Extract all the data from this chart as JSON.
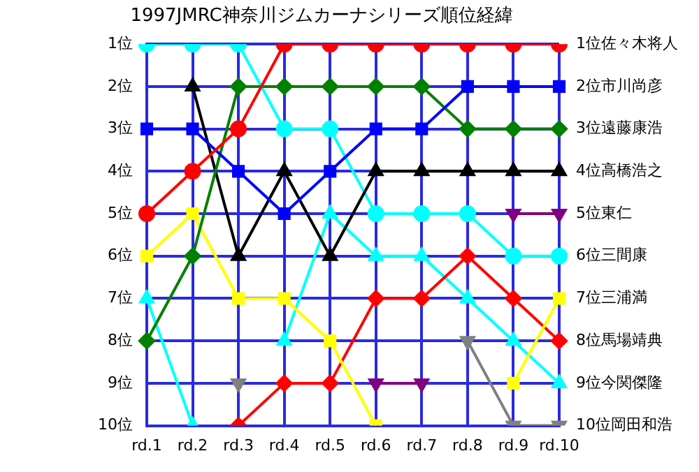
{
  "chart_data": {
    "type": "line",
    "title": "1997JMRC神奈川ジムカーナシリーズ順位経緯",
    "categories": [
      "rd.1",
      "rd.2",
      "rd.3",
      "rd.4",
      "rd.5",
      "rd.6",
      "rd.7",
      "rd.8",
      "rd.9",
      "rd.10"
    ],
    "ylim": [
      10,
      1
    ],
    "yticks": [
      {
        "value": 1,
        "label": "1位"
      },
      {
        "value": 2,
        "label": "2位"
      },
      {
        "value": 3,
        "label": "3位"
      },
      {
        "value": 4,
        "label": "4位"
      },
      {
        "value": 5,
        "label": "5位"
      },
      {
        "value": 6,
        "label": "6位"
      },
      {
        "value": 7,
        "label": "7位"
      },
      {
        "value": 8,
        "label": "8位"
      },
      {
        "value": 9,
        "label": "9位"
      },
      {
        "value": 10,
        "label": "10位"
      }
    ],
    "grid": true,
    "legend": false,
    "series": [
      {
        "name": "1位佐々木将人",
        "color": "#ff0000",
        "marker": "circle",
        "values": [
          5,
          4,
          3,
          1,
          1,
          1,
          1,
          1,
          1,
          1
        ]
      },
      {
        "name": "2位市川尚彦",
        "color": "#0000ff",
        "marker": "square",
        "values": [
          3,
          3,
          4,
          5,
          4,
          3,
          3,
          2,
          2,
          2
        ]
      },
      {
        "name": "3位遠藤康浩",
        "color": "#008000",
        "marker": "diamond",
        "values": [
          8,
          6,
          2,
          2,
          2,
          2,
          2,
          3,
          3,
          3
        ]
      },
      {
        "name": "4位高橋浩之",
        "color": "#000000",
        "marker": "triangle",
        "values": [
          null,
          2,
          6,
          4,
          6,
          4,
          4,
          4,
          4,
          4
        ]
      },
      {
        "name": "5位東仁",
        "color": "#800080",
        "marker": "triangle_down",
        "values": [
          null,
          null,
          null,
          null,
          null,
          9,
          9,
          null,
          5,
          5
        ]
      },
      {
        "name": "6位三間康",
        "color": "#00ffff",
        "marker": "circle",
        "values": [
          1,
          1,
          1,
          3,
          3,
          5,
          5,
          5,
          6,
          6
        ]
      },
      {
        "name": "7位三浦満",
        "color": "#ffff00",
        "marker": "square",
        "values": [
          6,
          5,
          7,
          7,
          8,
          10,
          null,
          null,
          9,
          7
        ]
      },
      {
        "name": "8位馬場靖典",
        "color": "#ff0000",
        "marker": "diamond",
        "values": [
          null,
          null,
          10,
          9,
          9,
          7,
          7,
          6,
          7,
          8
        ]
      },
      {
        "name": "9位今関傑隆",
        "color": "#00ffff",
        "marker": "triangle",
        "values": [
          7,
          10,
          null,
          8,
          5,
          6,
          6,
          7,
          8,
          9
        ]
      },
      {
        "name": "10位岡田和浩",
        "color": "#808080",
        "marker": "triangle_down",
        "values": [
          null,
          null,
          9,
          null,
          null,
          null,
          null,
          8,
          10,
          10
        ]
      }
    ]
  }
}
